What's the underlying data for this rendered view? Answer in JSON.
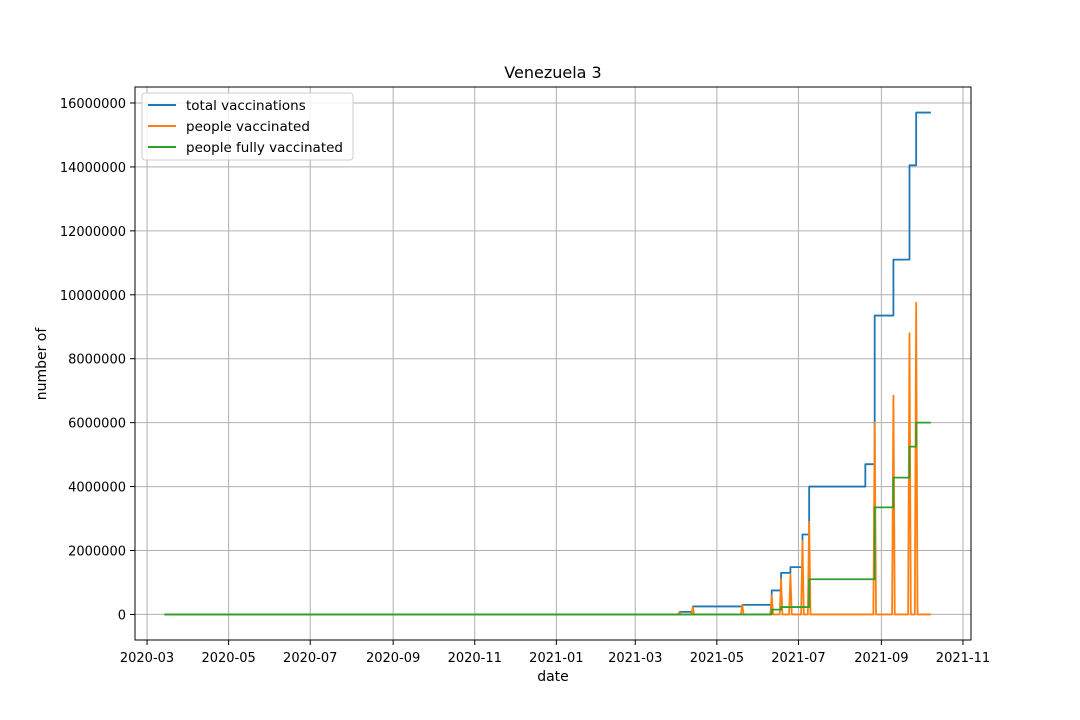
{
  "chart_data": {
    "type": "line",
    "title": "Venezuela 3",
    "xlabel": "date",
    "ylabel": "number of",
    "xlim": [
      "2020-02-21",
      "2021-11-07"
    ],
    "ylim": [
      -800000,
      16500000
    ],
    "x_ticks": [
      "2020-03",
      "2020-05",
      "2020-07",
      "2020-09",
      "2020-11",
      "2021-01",
      "2021-03",
      "2021-05",
      "2021-07",
      "2021-09",
      "2021-11"
    ],
    "x_tick_dates": [
      "2020-03-01",
      "2020-05-01",
      "2020-07-01",
      "2020-09-01",
      "2020-11-01",
      "2021-01-01",
      "2021-03-01",
      "2021-05-01",
      "2021-07-01",
      "2021-09-01",
      "2021-11-01"
    ],
    "y_ticks": [
      0,
      2000000,
      4000000,
      6000000,
      8000000,
      10000000,
      12000000,
      14000000,
      16000000
    ],
    "y_tick_labels": [
      "0",
      "2000000",
      "4000000",
      "6000000",
      "8000000",
      "10000000",
      "12000000",
      "14000000",
      "16000000"
    ],
    "grid": true,
    "legend_position": "top-left",
    "series": [
      {
        "name": "total vaccinations",
        "color": "#1f77b4",
        "points": [
          [
            "2020-03-14",
            0
          ],
          [
            "2021-04-03",
            0
          ],
          [
            "2021-04-03",
            80000
          ],
          [
            "2021-04-13",
            80000
          ],
          [
            "2021-04-13",
            250000
          ],
          [
            "2021-05-20",
            250000
          ],
          [
            "2021-05-20",
            300000
          ],
          [
            "2021-06-11",
            300000
          ],
          [
            "2021-06-11",
            750000
          ],
          [
            "2021-06-18",
            750000
          ],
          [
            "2021-06-18",
            1300000
          ],
          [
            "2021-06-25",
            1300000
          ],
          [
            "2021-06-25",
            1480000
          ],
          [
            "2021-07-04",
            1480000
          ],
          [
            "2021-07-04",
            2500000
          ],
          [
            "2021-07-09",
            2500000
          ],
          [
            "2021-07-09",
            4000000
          ],
          [
            "2021-08-20",
            4000000
          ],
          [
            "2021-08-20",
            4700000
          ],
          [
            "2021-08-27",
            4700000
          ],
          [
            "2021-08-27",
            9350000
          ],
          [
            "2021-09-10",
            9350000
          ],
          [
            "2021-09-10",
            11100000
          ],
          [
            "2021-09-22",
            11100000
          ],
          [
            "2021-09-22",
            14050000
          ],
          [
            "2021-09-27",
            14050000
          ],
          [
            "2021-09-27",
            15700000
          ],
          [
            "2021-10-08",
            15700000
          ]
        ]
      },
      {
        "name": "people vaccinated",
        "color": "#ff7f0e",
        "points": [
          [
            "2020-03-14",
            0
          ],
          [
            "2021-04-02",
            0
          ],
          [
            "2021-04-03",
            80000
          ],
          [
            "2021-04-04",
            0
          ],
          [
            "2021-04-12",
            0
          ],
          [
            "2021-04-13",
            230000
          ],
          [
            "2021-04-14",
            0
          ],
          [
            "2021-05-19",
            0
          ],
          [
            "2021-05-20",
            300000
          ],
          [
            "2021-05-21",
            0
          ],
          [
            "2021-06-10",
            0
          ],
          [
            "2021-06-11",
            600000
          ],
          [
            "2021-06-12",
            0
          ],
          [
            "2021-06-17",
            0
          ],
          [
            "2021-06-18",
            1100000
          ],
          [
            "2021-06-19",
            0
          ],
          [
            "2021-06-24",
            0
          ],
          [
            "2021-06-25",
            1250000
          ],
          [
            "2021-06-26",
            0
          ],
          [
            "2021-07-03",
            0
          ],
          [
            "2021-07-04",
            2300000
          ],
          [
            "2021-07-05",
            0
          ],
          [
            "2021-07-08",
            0
          ],
          [
            "2021-07-09",
            2900000
          ],
          [
            "2021-07-10",
            0
          ],
          [
            "2021-08-26",
            0
          ],
          [
            "2021-08-27",
            6000000
          ],
          [
            "2021-08-28",
            0
          ],
          [
            "2021-09-09",
            0
          ],
          [
            "2021-09-10",
            6850000
          ],
          [
            "2021-09-11",
            0
          ],
          [
            "2021-09-21",
            0
          ],
          [
            "2021-09-22",
            8800000
          ],
          [
            "2021-09-23",
            0
          ],
          [
            "2021-09-26",
            0
          ],
          [
            "2021-09-27",
            9750000
          ],
          [
            "2021-09-28",
            0
          ],
          [
            "2021-10-08",
            0
          ]
        ]
      },
      {
        "name": "people fully vaccinated",
        "color": "#2ca02c",
        "points": [
          [
            "2020-03-14",
            0
          ],
          [
            "2021-06-11",
            0
          ],
          [
            "2021-06-11",
            150000
          ],
          [
            "2021-06-18",
            150000
          ],
          [
            "2021-06-18",
            230000
          ],
          [
            "2021-07-09",
            230000
          ],
          [
            "2021-07-09",
            1100000
          ],
          [
            "2021-08-27",
            1100000
          ],
          [
            "2021-08-27",
            3350000
          ],
          [
            "2021-09-10",
            3350000
          ],
          [
            "2021-09-10",
            4280000
          ],
          [
            "2021-09-22",
            4280000
          ],
          [
            "2021-09-22",
            5250000
          ],
          [
            "2021-09-27",
            5250000
          ],
          [
            "2021-09-27",
            6000000
          ],
          [
            "2021-10-08",
            6000000
          ]
        ]
      }
    ]
  }
}
